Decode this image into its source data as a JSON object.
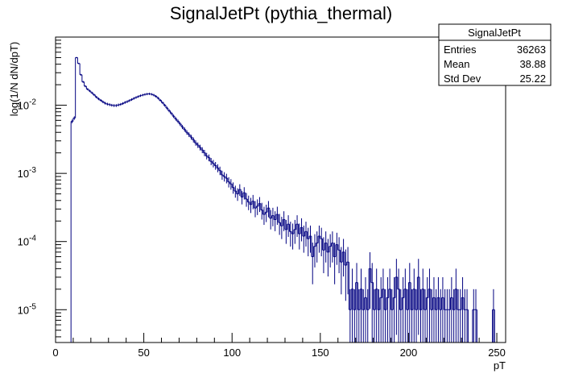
{
  "chart_data": {
    "type": "histogram",
    "title": "SignalJetPt (pythia_thermal)",
    "xlabel": "pT",
    "ylabel": "log(1/N dN/dpT)",
    "xlim": [
      0,
      255
    ],
    "ylim": [
      3.3e-06,
      0.1
    ],
    "log_y": true,
    "grid": false,
    "line_color": "#000080",
    "x_ticks": [
      0,
      50,
      100,
      150,
      200,
      250
    ],
    "y_ticks": [
      {
        "value": 1e-05,
        "base": "10",
        "exp": "-5"
      },
      {
        "value": 0.0001,
        "base": "10",
        "exp": "-4"
      },
      {
        "value": 0.001,
        "base": "10",
        "exp": "-3"
      },
      {
        "value": 0.01,
        "base": "10",
        "exp": "-2"
      }
    ],
    "bin_width": 1.25,
    "bins": [
      [
        8.75,
        0.0058
      ],
      [
        10.0,
        0.0065
      ],
      [
        11.25,
        0.05
      ],
      [
        12.5,
        0.041
      ],
      [
        13.75,
        0.028
      ],
      [
        15.0,
        0.022
      ],
      [
        16.25,
        0.019
      ],
      [
        17.5,
        0.0172
      ],
      [
        18.75,
        0.0162
      ],
      [
        20.0,
        0.0152
      ],
      [
        21.25,
        0.0142
      ],
      [
        22.5,
        0.0132
      ],
      [
        23.75,
        0.0124
      ],
      [
        25.0,
        0.0118
      ],
      [
        26.25,
        0.0112
      ],
      [
        27.5,
        0.0107
      ],
      [
        28.75,
        0.0104
      ],
      [
        30.0,
        0.0102
      ],
      [
        31.25,
        0.01
      ],
      [
        32.5,
        0.0099
      ],
      [
        33.75,
        0.0099
      ],
      [
        35.0,
        0.0101
      ],
      [
        36.25,
        0.0103
      ],
      [
        37.5,
        0.0106
      ],
      [
        38.75,
        0.011
      ],
      [
        40.0,
        0.0113
      ],
      [
        41.25,
        0.0117
      ],
      [
        42.5,
        0.0121
      ],
      [
        43.75,
        0.0126
      ],
      [
        45.0,
        0.013
      ],
      [
        46.25,
        0.0134
      ],
      [
        47.5,
        0.0138
      ],
      [
        48.75,
        0.0141
      ],
      [
        50.0,
        0.0144
      ],
      [
        51.25,
        0.0146
      ],
      [
        52.5,
        0.0147
      ],
      [
        53.75,
        0.0145
      ],
      [
        55.0,
        0.0141
      ],
      [
        56.25,
        0.0135
      ],
      [
        57.5,
        0.0127
      ],
      [
        58.75,
        0.0118
      ],
      [
        60.0,
        0.0109
      ],
      [
        61.25,
        0.01
      ],
      [
        62.5,
        0.0091
      ],
      [
        63.75,
        0.0083
      ],
      [
        65.0,
        0.0076
      ],
      [
        66.25,
        0.0069
      ],
      [
        67.5,
        0.0063
      ],
      [
        68.75,
        0.0058
      ],
      [
        70.0,
        0.0053
      ],
      [
        71.25,
        0.0048
      ],
      [
        72.5,
        0.0044
      ],
      [
        73.75,
        0.004
      ],
      [
        75.0,
        0.0037
      ],
      [
        76.25,
        0.0034
      ],
      [
        77.5,
        0.0031
      ],
      [
        78.75,
        0.0028
      ],
      [
        80.0,
        0.0026
      ],
      [
        81.25,
        0.0024
      ],
      [
        82.5,
        0.0022
      ],
      [
        83.75,
        0.002
      ],
      [
        85.0,
        0.0018
      ],
      [
        86.25,
        0.0017
      ],
      [
        87.5,
        0.0015
      ],
      [
        88.75,
        0.0014
      ],
      [
        90.0,
        0.0013
      ],
      [
        91.25,
        0.0012
      ],
      [
        92.5,
        0.0011
      ],
      [
        93.75,
        0.00095
      ],
      [
        95.0,
        0.0009
      ],
      [
        96.25,
        0.00085
      ],
      [
        97.5,
        0.00075
      ],
      [
        98.75,
        0.0007
      ],
      [
        100.0,
        0.00062
      ],
      [
        101.25,
        0.00055
      ],
      [
        102.5,
        0.0005
      ],
      [
        103.75,
        0.00058
      ],
      [
        105.0,
        0.00045
      ],
      [
        106.25,
        0.00052
      ],
      [
        107.5,
        0.00042
      ],
      [
        108.75,
        0.00038
      ],
      [
        110.0,
        0.00035
      ],
      [
        111.25,
        0.00039
      ],
      [
        112.5,
        0.00031
      ],
      [
        113.75,
        0.00033
      ],
      [
        115.0,
        0.00036
      ],
      [
        116.25,
        0.00029
      ],
      [
        117.5,
        0.00025
      ],
      [
        118.75,
        0.00027
      ],
      [
        120.0,
        0.00031
      ],
      [
        121.25,
        0.00022
      ],
      [
        122.5,
        0.00024
      ],
      [
        123.75,
        0.00021
      ],
      [
        125.0,
        0.00025
      ],
      [
        126.25,
        0.00019
      ],
      [
        127.5,
        0.00017
      ],
      [
        128.75,
        0.00021
      ],
      [
        130.0,
        0.00015
      ],
      [
        131.25,
        0.00018
      ],
      [
        132.5,
        0.00014
      ],
      [
        133.75,
        0.00013
      ],
      [
        135.0,
        0.00015
      ],
      [
        136.25,
        0.00018
      ],
      [
        137.5,
        0.00013
      ],
      [
        138.75,
        0.00016
      ],
      [
        140.0,
        0.00012
      ],
      [
        141.25,
        0.00014
      ],
      [
        142.5,
        0.00011
      ],
      [
        143.75,
        0.00012
      ],
      [
        145.0,
        6e-05
      ],
      [
        146.25,
        8.5e-05
      ],
      [
        147.5,
        9.5e-05
      ],
      [
        148.75,
        0.00012
      ],
      [
        150.0,
        0.00011
      ],
      [
        151.25,
        7.5e-05
      ],
      [
        152.5,
        9.5e-05
      ],
      [
        153.75,
        7e-05
      ],
      [
        155.0,
        8.5e-05
      ],
      [
        156.25,
        9.5e-05
      ],
      [
        157.5,
        6e-05
      ],
      [
        158.75,
        9e-05
      ],
      [
        160.0,
        7.5e-05
      ],
      [
        161.25,
        5e-05
      ],
      [
        162.5,
        7e-05
      ],
      [
        163.75,
        4.5e-05
      ],
      [
        165.0,
        5e-05
      ],
      [
        166.25,
        1e-05
      ],
      [
        167.5,
        2e-05
      ],
      [
        168.75,
        1e-05
      ],
      [
        170.0,
        2.5e-05
      ],
      [
        171.25,
        1e-05
      ],
      [
        172.5,
        2e-05
      ],
      [
        173.75,
        1e-05
      ],
      [
        175.0,
        1.5e-05
      ],
      [
        176.25,
        1e-05
      ],
      [
        177.5,
        4e-05
      ],
      [
        178.75,
        2.5e-05
      ],
      [
        180.0,
        1e-05
      ],
      [
        181.25,
        2e-05
      ],
      [
        182.5,
        1e-05
      ],
      [
        183.75,
        1.5e-05
      ],
      [
        185.0,
        2e-05
      ],
      [
        186.25,
        1e-05
      ],
      [
        187.5,
        1.5e-05
      ],
      [
        188.75,
        2e-05
      ],
      [
        190.0,
        1e-05
      ],
      [
        191.25,
        1.5e-05
      ],
      [
        192.5,
        3e-05
      ],
      [
        193.75,
        2e-05
      ],
      [
        195.0,
        1e-05
      ],
      [
        196.25,
        1.5e-05
      ],
      [
        197.5,
        2e-05
      ],
      [
        198.75,
        1e-05
      ],
      [
        200.0,
        2.5e-05
      ],
      [
        201.25,
        1e-05
      ],
      [
        202.5,
        2e-05
      ],
      [
        203.75,
        1e-05
      ],
      [
        205.0,
        3e-05
      ],
      [
        206.25,
        1e-05
      ],
      [
        207.5,
        2e-05
      ],
      [
        208.75,
        1e-05
      ],
      [
        210.0,
        1.5e-05
      ],
      [
        211.25,
        2e-05
      ],
      [
        212.5,
        1e-05
      ],
      [
        213.75,
        1.5e-05
      ],
      [
        215.0,
        1e-05
      ],
      [
        216.25,
        1.5e-05
      ],
      [
        217.5,
        1e-05
      ],
      [
        218.75,
        1.5e-05
      ],
      [
        220.0,
        1e-05
      ],
      [
        221.25,
        1e-05
      ],
      [
        222.5,
        1e-05
      ],
      [
        223.75,
        1.5e-05
      ],
      [
        225.0,
        1e-05
      ],
      [
        226.25,
        2e-05
      ],
      [
        227.5,
        1e-05
      ],
      [
        228.75,
        1e-05
      ],
      [
        230.0,
        1.5e-05
      ],
      [
        231.25,
        1e-05
      ],
      [
        232.5,
        1e-05
      ],
      [
        236.25,
        1e-05
      ],
      [
        237.5,
        1e-05
      ],
      [
        247.5,
        1e-05
      ]
    ],
    "legend": {
      "position": "top-right",
      "title": "SignalJetPt",
      "rows": [
        {
          "label": "Entries",
          "value": "36263"
        },
        {
          "label": "Mean",
          "value": "38.88"
        },
        {
          "label": "Std Dev",
          "value": "25.22"
        }
      ]
    }
  }
}
